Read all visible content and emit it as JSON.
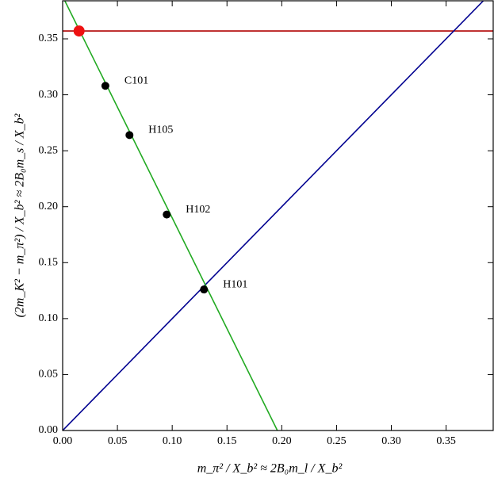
{
  "chart_data": {
    "type": "scatter",
    "xlabel": "m_π² / X_b² ≈ 2B₀m_l / X_b²",
    "ylabel": "(2m_K² − m_π²) / X_b² ≈ 2B₀m_s / X_b²",
    "xlim": [
      0,
      0.393
    ],
    "ylim": [
      0,
      0.384
    ],
    "xticks": [
      {
        "value": 0,
        "label": "0.00"
      },
      {
        "value": 0.05,
        "label": "0.05"
      },
      {
        "value": 0.1,
        "label": "0.10"
      },
      {
        "value": 0.15,
        "label": "0.15"
      },
      {
        "value": 0.2,
        "label": "0.20"
      },
      {
        "value": 0.25,
        "label": "0.25"
      },
      {
        "value": 0.3,
        "label": "0.30"
      },
      {
        "value": 0.35,
        "label": "0.35"
      }
    ],
    "yticks": [
      {
        "value": 0,
        "label": "0.00"
      },
      {
        "value": 0.05,
        "label": "0.05"
      },
      {
        "value": 0.1,
        "label": "0.10"
      },
      {
        "value": 0.15,
        "label": "0.15"
      },
      {
        "value": 0.2,
        "label": "0.20"
      },
      {
        "value": 0.25,
        "label": "0.25"
      },
      {
        "value": 0.3,
        "label": "0.30"
      },
      {
        "value": 0.35,
        "label": "0.35"
      }
    ],
    "lines": [
      {
        "color": "#b00000",
        "x": [
          0,
          0.393
        ],
        "y": [
          0.357,
          0.357
        ]
      },
      {
        "color": "#000090",
        "x": [
          0,
          0.384
        ],
        "y": [
          0,
          0.384
        ]
      },
      {
        "color": "#22aa22",
        "x": [
          0.002,
          0.196
        ],
        "y": [
          0.384,
          0
        ]
      }
    ],
    "points": {
      "x": [
        0.015,
        0.039,
        0.061,
        0.095,
        0.129
      ],
      "y": [
        0.357,
        0.308,
        0.264,
        0.193,
        0.126
      ],
      "labels": [
        null,
        "C101",
        "H105",
        "H102",
        "H101"
      ],
      "colors": [
        "#ee1111",
        "#000000",
        "#000000",
        "#000000",
        "#000000"
      ]
    }
  }
}
